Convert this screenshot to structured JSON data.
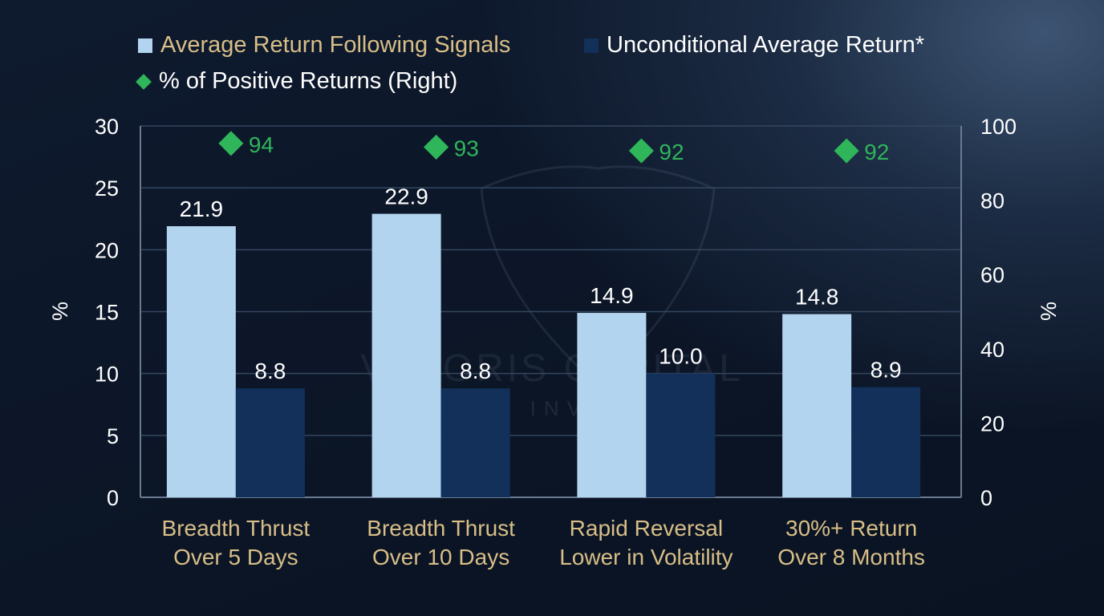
{
  "chart_data": {
    "type": "bar",
    "categories": [
      [
        "Breadth Thrust",
        "Over 5 Days"
      ],
      [
        "Breadth Thrust",
        "Over 10 Days"
      ],
      [
        "Rapid Reversal",
        "Lower in Volatility"
      ],
      [
        "30%+ Return",
        "Over 8 Months"
      ]
    ],
    "series": [
      {
        "name": "Average Return Following Signals",
        "type": "bar",
        "axis": "left",
        "color": "#b3d4ee",
        "values": [
          21.9,
          22.9,
          14.9,
          14.8
        ],
        "labels": [
          "21.9",
          "22.9",
          "14.9",
          "14.8"
        ]
      },
      {
        "name": "Unconditional Average Return*",
        "type": "bar",
        "axis": "left",
        "color": "#13305a",
        "values": [
          8.8,
          8.8,
          10.0,
          8.9
        ],
        "labels": [
          "8.8",
          "8.8",
          "10.0",
          "8.9"
        ]
      },
      {
        "name": "% of Positive Returns (Right)",
        "type": "scatter",
        "marker": "diamond",
        "axis": "right",
        "color": "#2fb55a",
        "values": [
          94,
          93,
          92,
          92
        ],
        "labels": [
          "94",
          "93",
          "92",
          "92"
        ]
      }
    ],
    "ylabel": "%",
    "y2label": "%",
    "ylim": [
      0,
      30
    ],
    "y2lim": [
      0,
      100
    ],
    "yticks": [
      "0",
      "5",
      "10",
      "15",
      "20",
      "25",
      "30"
    ],
    "y2ticks": [
      "0",
      "20",
      "40",
      "60",
      "80",
      "100"
    ],
    "grid": true,
    "legend": "top-left"
  },
  "colors": {
    "category_label": "#d8be87",
    "legend_highlight": "#d8be87",
    "grid": "#34465e"
  },
  "watermark": {
    "line1": "VELORIS CAPITAL",
    "line2": "QUANT INVESTOR"
  }
}
